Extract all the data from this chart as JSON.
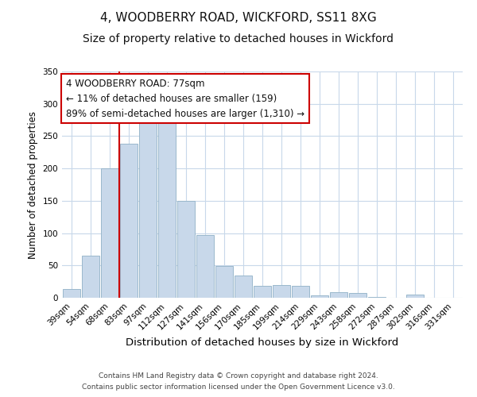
{
  "title": "4, WOODBERRY ROAD, WICKFORD, SS11 8XG",
  "subtitle": "Size of property relative to detached houses in Wickford",
  "xlabel": "Distribution of detached houses by size in Wickford",
  "ylabel": "Number of detached properties",
  "bar_color": "#c8d8ea",
  "bar_edge_color": "#9ab8cc",
  "background_color": "#ffffff",
  "grid_color": "#c8d8ea",
  "categories": [
    "39sqm",
    "54sqm",
    "68sqm",
    "83sqm",
    "97sqm",
    "112sqm",
    "127sqm",
    "141sqm",
    "156sqm",
    "170sqm",
    "185sqm",
    "199sqm",
    "214sqm",
    "229sqm",
    "243sqm",
    "258sqm",
    "272sqm",
    "287sqm",
    "302sqm",
    "316sqm",
    "331sqm"
  ],
  "values": [
    13,
    65,
    200,
    238,
    278,
    291,
    150,
    97,
    49,
    35,
    18,
    20,
    18,
    4,
    8,
    7,
    1,
    0,
    5,
    0,
    0
  ],
  "ylim": [
    0,
    350
  ],
  "yticks": [
    0,
    50,
    100,
    150,
    200,
    250,
    300,
    350
  ],
  "vline_index": 3,
  "vline_color": "#cc0000",
  "annotation_text": "4 WOODBERRY ROAD: 77sqm\n← 11% of detached houses are smaller (159)\n89% of semi-detached houses are larger (1,310) →",
  "annotation_box_color": "#ffffff",
  "annotation_border_color": "#cc0000",
  "footer_line1": "Contains HM Land Registry data © Crown copyright and database right 2024.",
  "footer_line2": "Contains public sector information licensed under the Open Government Licence v3.0.",
  "title_fontsize": 11,
  "subtitle_fontsize": 10,
  "xlabel_fontsize": 9.5,
  "ylabel_fontsize": 8.5,
  "tick_fontsize": 7.5,
  "annotation_fontsize": 8.5,
  "footer_fontsize": 6.5
}
